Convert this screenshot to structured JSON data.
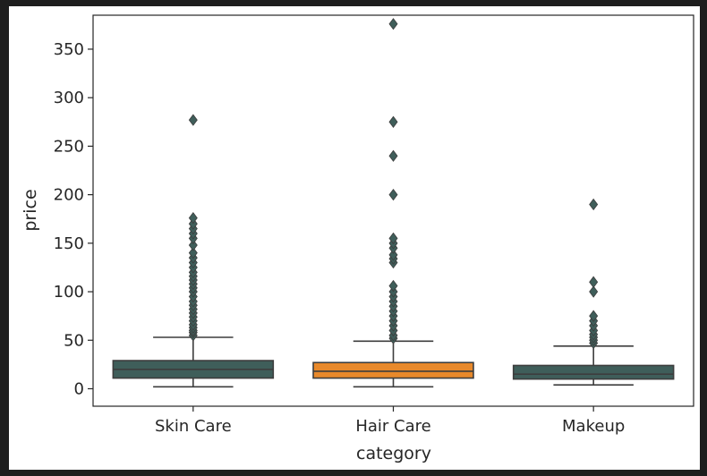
{
  "chart_data": {
    "type": "box",
    "title": "",
    "xlabel": "category",
    "ylabel": "price",
    "ylim": [
      -18,
      385
    ],
    "yticks": [
      0,
      50,
      100,
      150,
      200,
      250,
      300,
      350
    ],
    "grid": false,
    "categories": [
      "Skin Care",
      "Hair Care",
      "Makeup"
    ],
    "boxes": [
      {
        "category": "Skin Care",
        "color": "#3f5e5a",
        "whisker_low": 2,
        "q1": 11,
        "median": 20,
        "q3": 29,
        "whisker_high": 53,
        "outliers": [
          55,
          58,
          60,
          63,
          66,
          70,
          74,
          78,
          82,
          86,
          90,
          95,
          100,
          104,
          108,
          112,
          116,
          120,
          125,
          130,
          135,
          140,
          148,
          155,
          160,
          165,
          170,
          176,
          277
        ]
      },
      {
        "category": "Hair Care",
        "color": "#e8892b",
        "whisker_low": 2,
        "q1": 11,
        "median": 18,
        "q3": 27,
        "whisker_high": 49,
        "outliers": [
          52,
          55,
          60,
          65,
          70,
          75,
          80,
          85,
          90,
          95,
          100,
          106,
          130,
          134,
          138,
          145,
          150,
          155,
          200,
          240,
          275,
          376
        ]
      },
      {
        "category": "Makeup",
        "color": "#3f5e5a",
        "whisker_low": 4,
        "q1": 10,
        "median": 15,
        "q3": 24,
        "whisker_high": 44,
        "outliers": [
          47,
          50,
          53,
          56,
          60,
          65,
          70,
          75,
          100,
          110,
          190
        ]
      }
    ]
  }
}
